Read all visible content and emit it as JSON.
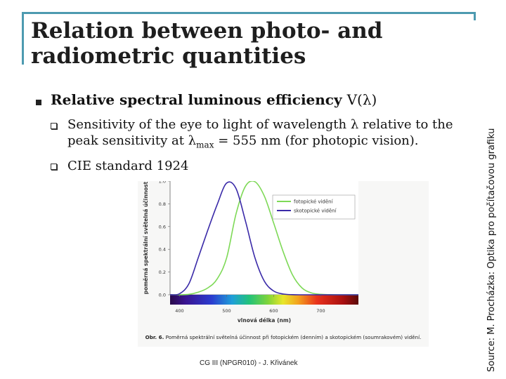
{
  "slide": {
    "title_line1": "Relation between photo- and",
    "title_line2": "radiometric quantities",
    "bullet_main": "Relative spectral luminous efficiency",
    "bullet_main_symbol": "V(λ)",
    "sub1_line1": "Sensitivity of the eye to light of wavelength λ relative to the",
    "sub1_line2_a": "peak sensitivity at λ",
    "sub1_line2_sub": "max",
    "sub1_line2_b": " = 555 nm (for photopic vision).",
    "sub2": "CIE standard 1924",
    "source": "Source: M. Procházka: Optika pro počítačovou grafiku",
    "footer": "CG III (NPGR010) - J. Křivánek"
  },
  "colors": {
    "accent": "#4d9ab0",
    "photopic": "#7ed957",
    "scotopic": "#3a2aa8"
  },
  "chart_data": {
    "type": "line",
    "ylabel": "poměrná spektrální světelná účinnost",
    "xlabel": "vlnová délka (nm)",
    "xlim": [
      380,
      780
    ],
    "ylim": [
      0,
      1.0
    ],
    "x_ticks": [
      "400",
      "500",
      "600",
      "700"
    ],
    "y_ticks": [
      "0.0",
      "0.2",
      "0.4",
      "0.6",
      "0.8",
      "1.0"
    ],
    "legend_position": "top-right",
    "caption_label": "Obr. 6.",
    "caption_text": " Poměrná spektrální světelná účinnost při fotopickém (denním) a skotopickém (soumrakovém) vidění.",
    "x": [
      380,
      400,
      420,
      440,
      460,
      480,
      500,
      520,
      540,
      560,
      580,
      600,
      620,
      640,
      660,
      680,
      700,
      720,
      740,
      760,
      780
    ],
    "series": [
      {
        "name": "fotopické vidění",
        "color": "#7ed957",
        "values": [
          0.0,
          0.0004,
          0.004,
          0.023,
          0.06,
          0.139,
          0.323,
          0.71,
          0.954,
          0.995,
          0.87,
          0.631,
          0.381,
          0.175,
          0.061,
          0.017,
          0.004,
          0.001,
          0.0,
          0.0,
          0.0
        ]
      },
      {
        "name": "skotopické vidění",
        "color": "#3a2aa8",
        "values": [
          0.0006,
          0.009,
          0.097,
          0.328,
          0.567,
          0.793,
          0.982,
          0.935,
          0.65,
          0.329,
          0.121,
          0.033,
          0.007,
          0.001,
          0.0,
          0.0,
          0.0,
          0.0,
          0.0,
          0.0,
          0.0
        ]
      }
    ]
  }
}
